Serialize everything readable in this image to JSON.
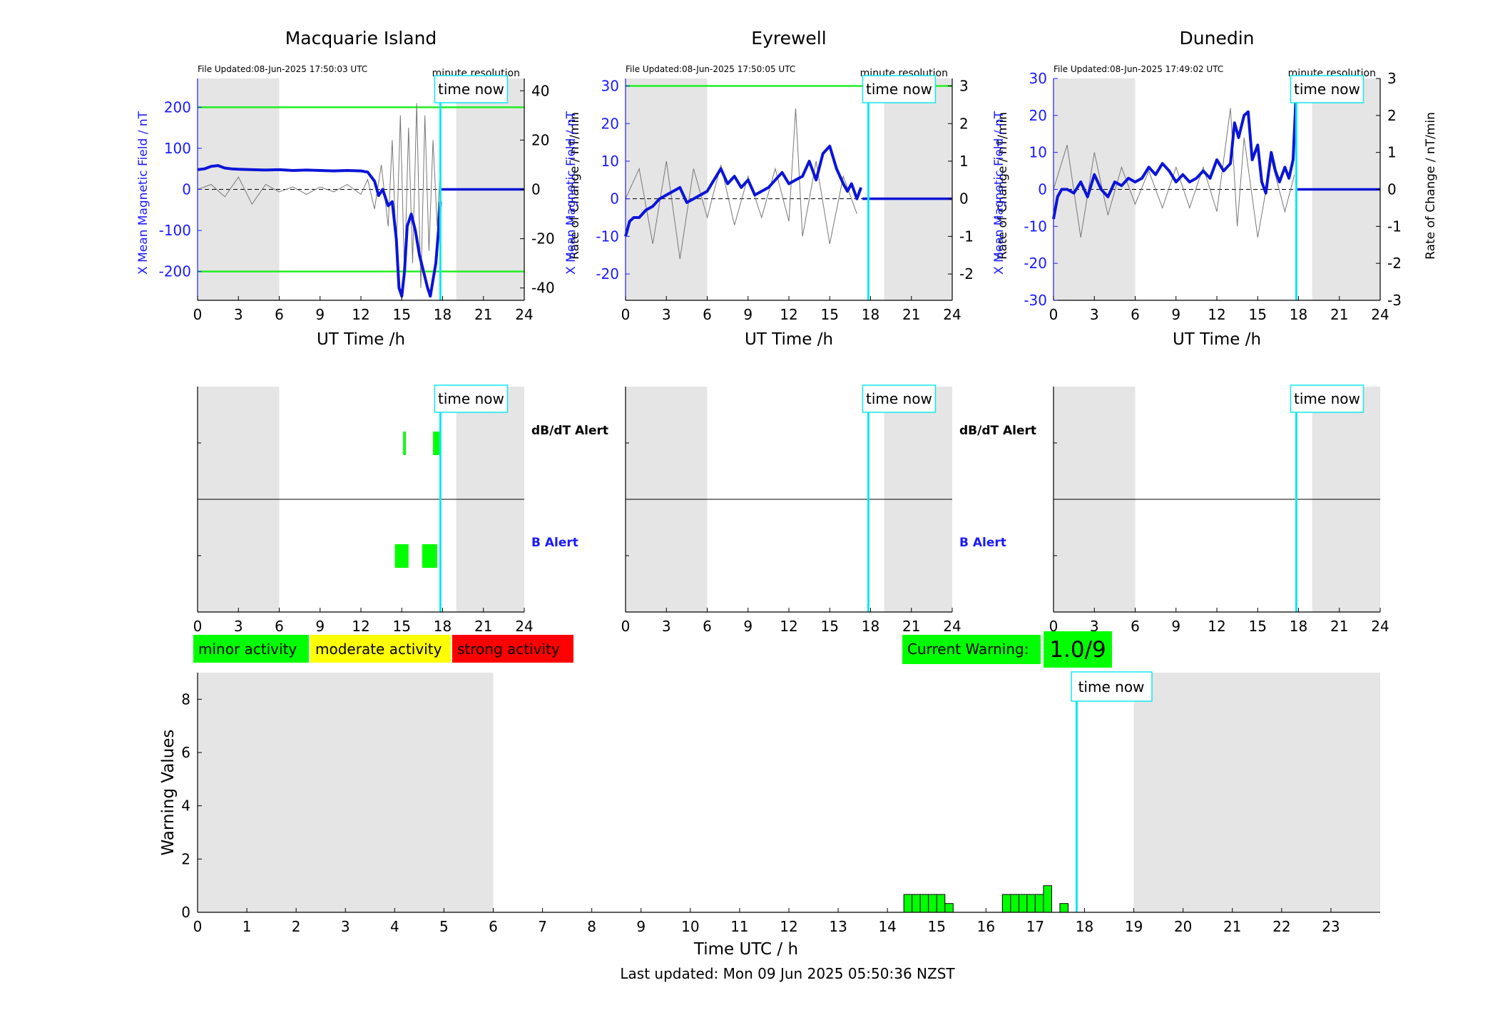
{
  "stations": [
    {
      "name": "Macquarie Island",
      "file_updated": "File Updated:08-Jun-2025 17:50:03 UTC",
      "resolution": "minute resolution",
      "ylabel_left": "X Mean Magnetic Field / nT",
      "ylabel_right": "Rate of Change / nT/min",
      "xlabel": "UT Time /h",
      "left_ylim": [
        -270,
        270
      ],
      "left_ticks": [
        -200,
        -100,
        0,
        100,
        200
      ],
      "right_ylim": [
        -45,
        45
      ],
      "right_ticks": [
        -40,
        -20,
        0,
        20,
        40
      ],
      "threshold": 200,
      "field_x": [
        0,
        0.5,
        1,
        1.5,
        2,
        2.5,
        3,
        4,
        5,
        6,
        7,
        8,
        9,
        10,
        11,
        12,
        12.5,
        13,
        13.3,
        13.6,
        14,
        14.3,
        14.6,
        14.8,
        15,
        15.2,
        15.4,
        15.7,
        16,
        16.3,
        16.6,
        16.9,
        17.1,
        17.3,
        17.5,
        17.7,
        17.85
      ],
      "field_y": [
        48,
        50,
        56,
        58,
        52,
        50,
        49,
        48,
        47,
        48,
        46,
        47,
        46,
        45,
        46,
        45,
        42,
        20,
        -15,
        0,
        -40,
        -30,
        -120,
        -240,
        -260,
        -200,
        -90,
        -60,
        -100,
        -160,
        -200,
        -240,
        -260,
        -220,
        -180,
        -100,
        -30
      ],
      "flat_from": 17.9,
      "flat_value": 0,
      "rate_x": [
        0,
        1,
        2,
        3,
        4,
        5,
        6,
        7,
        8,
        9,
        10,
        11,
        12,
        12.5,
        13,
        13.5,
        14,
        14.3,
        14.6,
        14.9,
        15.2,
        15.5,
        15.8,
        16.1,
        16.4,
        16.7,
        17,
        17.3,
        17.6,
        17.8
      ],
      "rate_y": [
        0,
        2,
        -3,
        5,
        -6,
        2,
        -1,
        1,
        -2,
        1,
        -1,
        2,
        -2,
        4,
        -8,
        10,
        -15,
        20,
        -25,
        30,
        -35,
        25,
        -30,
        35,
        -40,
        30,
        -25,
        20,
        -15,
        5
      ],
      "alert_dbdt": [
        [
          15.1,
          15.3
        ],
        [
          17.3,
          17.85
        ]
      ],
      "alert_b": [
        [
          14.5,
          15.5
        ],
        [
          16.5,
          17.6
        ]
      ]
    },
    {
      "name": "Eyrewell",
      "file_updated": "File Updated:08-Jun-2025 17:50:05 UTC",
      "resolution": "minute resolution",
      "ylabel_left": "X Mean Magnetic Field / nT",
      "ylabel_right": "Rate of Change / nT/min",
      "xlabel": "UT Time /h",
      "left_ylim": [
        -27,
        32
      ],
      "left_ticks": [
        -20,
        -10,
        0,
        10,
        20,
        30
      ],
      "right_ylim": [
        -2.7,
        3.2
      ],
      "right_ticks": [
        -2,
        -1,
        0,
        1,
        2,
        3
      ],
      "threshold": 30,
      "field_x": [
        0,
        0.3,
        0.6,
        1,
        1.5,
        2,
        2.5,
        3,
        3.5,
        4,
        4.5,
        5,
        5.5,
        6,
        6.5,
        7,
        7.5,
        8,
        8.5,
        9,
        9.5,
        10,
        10.5,
        11,
        11.5,
        12,
        12.5,
        13,
        13.5,
        14,
        14.5,
        15,
        15.5,
        16,
        16.3,
        16.6,
        17,
        17.3
      ],
      "field_y": [
        -10,
        -6,
        -5,
        -5,
        -3,
        -2,
        0,
        1,
        2,
        3,
        -1,
        0,
        1,
        2,
        5,
        8,
        4,
        6,
        3,
        5,
        1,
        2,
        3,
        5,
        7,
        4,
        5,
        6,
        10,
        5,
        12,
        14,
        8,
        4,
        2,
        4,
        0,
        3
      ],
      "flat_from": 17.4,
      "flat_value": 0,
      "rate_x": [
        0,
        1,
        2,
        3,
        4,
        5,
        6,
        7,
        8,
        9,
        10,
        11,
        12,
        12.5,
        13,
        14,
        15,
        16,
        17
      ],
      "rate_y": [
        0,
        0.8,
        -1.2,
        1,
        -1.6,
        0.8,
        -0.5,
        0.9,
        -0.7,
        0.6,
        -0.5,
        0.8,
        -0.6,
        2.4,
        -1,
        1,
        -1.2,
        0.6,
        -0.4
      ],
      "alert_dbdt": [],
      "alert_b": []
    },
    {
      "name": "Dunedin",
      "file_updated": "File Updated:08-Jun-2025 17:49:02 UTC",
      "resolution": "minute resolution",
      "ylabel_left": "X Mean Magnetic Field / nT",
      "ylabel_right": "Rate of Change / nT/min",
      "xlabel": "UT Time /h",
      "left_ylim": [
        -30,
        30
      ],
      "left_ticks": [
        -30,
        -20,
        -10,
        0,
        10,
        20,
        30
      ],
      "right_ylim": [
        -3,
        3
      ],
      "right_ticks": [
        -3,
        -2,
        -1,
        0,
        1,
        2,
        3
      ],
      "threshold": null,
      "field_x": [
        0,
        0.3,
        0.6,
        1,
        1.5,
        2,
        2.5,
        3,
        3.5,
        4,
        4.5,
        5,
        5.5,
        6,
        6.5,
        7,
        7.5,
        8,
        8.5,
        9,
        9.5,
        10,
        10.5,
        11,
        11.5,
        12,
        12.5,
        13,
        13.3,
        13.6,
        14,
        14.3,
        14.6,
        15,
        15.3,
        15.6,
        16,
        16.3,
        16.6,
        17,
        17.3,
        17.6,
        17.8
      ],
      "field_y": [
        -8,
        -2,
        0,
        0,
        -1,
        2,
        -2,
        4,
        0,
        -2,
        2,
        1,
        3,
        2,
        3,
        6,
        4,
        7,
        5,
        2,
        4,
        2,
        3,
        5,
        3,
        8,
        5,
        7,
        18,
        14,
        20,
        21,
        8,
        12,
        2,
        -1,
        10,
        5,
        2,
        6,
        3,
        8,
        24
      ],
      "flat_from": 17.9,
      "flat_value": 0,
      "rate_x": [
        0,
        1,
        2,
        3,
        4,
        5,
        6,
        7,
        8,
        9,
        10,
        11,
        12,
        13,
        13.5,
        14,
        15,
        16,
        17,
        17.7
      ],
      "rate_y": [
        0,
        1.2,
        -1.3,
        1,
        -0.7,
        0.6,
        -0.4,
        0.5,
        -0.5,
        0.6,
        -0.5,
        0.6,
        -0.6,
        2.2,
        -1,
        1.4,
        -1.3,
        0.8,
        -0.6,
        0.4
      ],
      "alert_dbdt": [],
      "alert_b": []
    }
  ],
  "common": {
    "time_now_label": "time now",
    "time_now_hour": 17.84,
    "shade_ranges": [
      [
        0,
        6
      ],
      [
        19,
        24
      ]
    ],
    "x_ticks": [
      0,
      3,
      6,
      9,
      12,
      15,
      18,
      21,
      24
    ],
    "dbdt_alert_label": "dB/dT Alert",
    "b_alert_label": "B Alert"
  },
  "legend": [
    {
      "label": "minor activity",
      "color": "#00ff00"
    },
    {
      "label": "moderate activity",
      "color": "#ffff00"
    },
    {
      "label": "strong activity",
      "color": "#ff0000"
    }
  ],
  "current_warning": {
    "label": "Current Warning:",
    "value": "1.0/9",
    "color": "#00ff00"
  },
  "chart_data": {
    "type": "bar",
    "ylabel": "Warning Values",
    "xlabel": "Time UTC / h",
    "ylim": [
      0,
      9
    ],
    "y_ticks": [
      0,
      2,
      4,
      6,
      8
    ],
    "x_ticks": [
      0,
      1,
      2,
      3,
      4,
      5,
      6,
      7,
      8,
      9,
      10,
      11,
      12,
      13,
      14,
      15,
      16,
      17,
      18,
      19,
      20,
      21,
      22,
      23
    ],
    "xlim": [
      0,
      24
    ],
    "bar_width_h": 0.1667,
    "bars": [
      {
        "x": 14.333,
        "value": 0.67
      },
      {
        "x": 14.5,
        "value": 0.67
      },
      {
        "x": 14.667,
        "value": 0.67
      },
      {
        "x": 14.833,
        "value": 0.67
      },
      {
        "x": 15.0,
        "value": 0.67
      },
      {
        "x": 15.167,
        "value": 0.33
      },
      {
        "x": 16.333,
        "value": 0.67
      },
      {
        "x": 16.5,
        "value": 0.67
      },
      {
        "x": 16.667,
        "value": 0.67
      },
      {
        "x": 16.833,
        "value": 0.67
      },
      {
        "x": 17.0,
        "value": 0.67
      },
      {
        "x": 17.167,
        "value": 1.0
      },
      {
        "x": 17.5,
        "value": 0.33
      }
    ],
    "bar_color": "#00ff00"
  },
  "footer": "Last updated: Mon 09 Jun 2025 05:50:36 NZST"
}
